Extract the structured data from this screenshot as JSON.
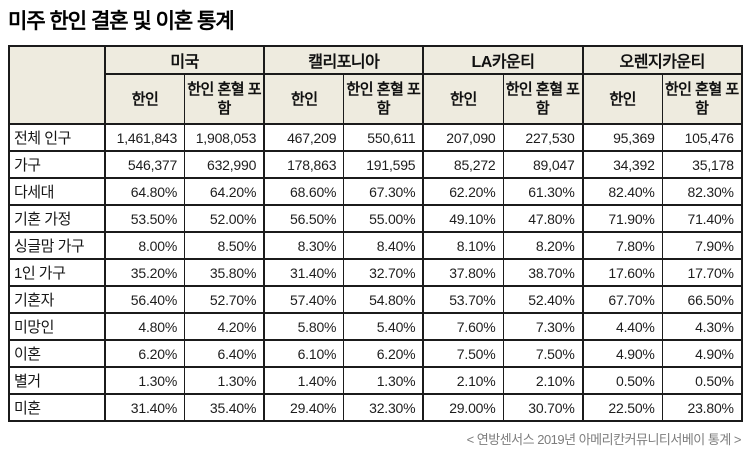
{
  "chart_data": {
    "type": "table",
    "title": "미주 한인 결혼 및 이혼 통계",
    "column_groups": [
      "미국",
      "캘리포니아",
      "LA카운티",
      "오렌지카운티"
    ],
    "sub_columns": [
      "한인",
      "한인 혼혈 포함"
    ],
    "rows": [
      {
        "label": "전체 인구",
        "values": [
          "1,461,843",
          "1,908,053",
          "467,209",
          "550,611",
          "207,090",
          "227,530",
          "95,369",
          "105,476"
        ]
      },
      {
        "label": "가구",
        "values": [
          "546,377",
          "632,990",
          "178,863",
          "191,595",
          "85,272",
          "89,047",
          "34,392",
          "35,178"
        ]
      },
      {
        "label": "다세대",
        "values": [
          "64.80%",
          "64.20%",
          "68.60%",
          "67.30%",
          "62.20%",
          "61.30%",
          "82.40%",
          "82.30%"
        ]
      },
      {
        "label": "기혼 가정",
        "values": [
          "53.50%",
          "52.00%",
          "56.50%",
          "55.00%",
          "49.10%",
          "47.80%",
          "71.90%",
          "71.40%"
        ]
      },
      {
        "label": "싱글맘 가구",
        "values": [
          "8.00%",
          "8.50%",
          "8.30%",
          "8.40%",
          "8.10%",
          "8.20%",
          "7.80%",
          "7.90%"
        ]
      },
      {
        "label": "1인 가구",
        "values": [
          "35.20%",
          "35.80%",
          "31.40%",
          "32.70%",
          "37.80%",
          "38.70%",
          "17.60%",
          "17.70%"
        ]
      },
      {
        "label": "기혼자",
        "values": [
          "56.40%",
          "52.70%",
          "57.40%",
          "54.80%",
          "53.70%",
          "52.40%",
          "67.70%",
          "66.50%"
        ]
      },
      {
        "label": "미망인",
        "values": [
          "4.80%",
          "4.20%",
          "5.80%",
          "5.40%",
          "7.60%",
          "7.30%",
          "4.40%",
          "4.30%"
        ]
      },
      {
        "label": "이혼",
        "values": [
          "6.20%",
          "6.40%",
          "6.10%",
          "6.20%",
          "7.50%",
          "7.50%",
          "4.90%",
          "4.90%"
        ]
      },
      {
        "label": "별거",
        "values": [
          "1.30%",
          "1.30%",
          "1.40%",
          "1.30%",
          "2.10%",
          "2.10%",
          "0.50%",
          "0.50%"
        ]
      },
      {
        "label": "미혼",
        "values": [
          "31.40%",
          "35.40%",
          "29.40%",
          "32.30%",
          "29.00%",
          "30.70%",
          "22.50%",
          "23.80%"
        ]
      }
    ],
    "source_note": "< 연방센서스 2019년 아메리칸커뮤니티서베이 통계 >",
    "layout": {
      "header_bg": "#eeebdf",
      "border_color": "#1b1b1b",
      "source_color": "#7d7d7d"
    }
  }
}
